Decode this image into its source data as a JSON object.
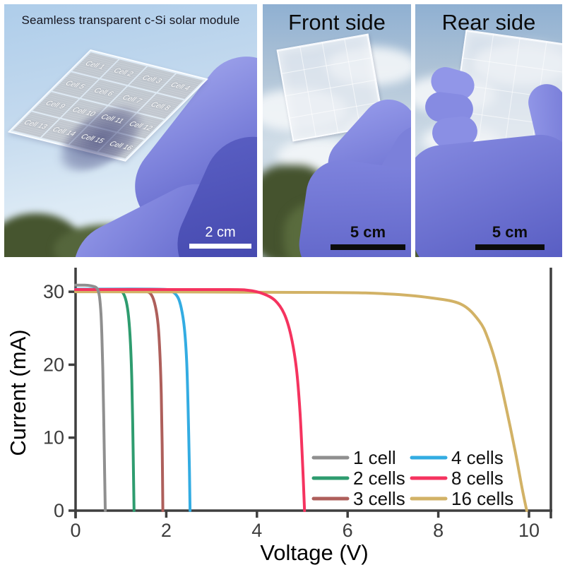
{
  "figure": {
    "panel_module": {
      "title": "Seamless transparent c-Si solar module",
      "cells": [
        "Cell 1",
        "Cell 2",
        "Cell 3",
        "Cell 4",
        "Cell 5",
        "Cell 6",
        "Cell 7",
        "Cell 8",
        "Cell 9",
        "Cell 10",
        "Cell 11",
        "Cell 12",
        "Cell 13",
        "Cell 14",
        "Cell 15",
        "Cell 16"
      ],
      "scale_bar_label": "2 cm"
    },
    "panel_front": {
      "title": "Front side",
      "scale_bar_label": "5 cm"
    },
    "panel_rear": {
      "title": "Rear side",
      "scale_bar_label": "5 cm"
    }
  },
  "colors": {
    "glove": "#7b80d8",
    "axis": "#3f3f3f",
    "tick_label": "#3d3d3d",
    "scale_bar_white": "#ffffff",
    "scale_bar_black": "#0c0c0c"
  },
  "chart_data": {
    "type": "line",
    "title": "",
    "xlabel": "Voltage (V)",
    "ylabel": "Current (mA)",
    "xlim": [
      0,
      10.55
    ],
    "ylim": [
      0,
      33.5
    ],
    "x_ticks": [
      0,
      2,
      4,
      6,
      8,
      10
    ],
    "y_ticks": [
      0,
      10,
      20,
      30
    ],
    "grid": false,
    "legend_position": "lower-right, two columns",
    "series": [
      {
        "name": "1 cell",
        "color": "#8f8f8f",
        "isc_mA": 30.9,
        "voc_V": 0.66,
        "points": [
          [
            0,
            30.9
          ],
          [
            0.2,
            30.9
          ],
          [
            0.35,
            30.8
          ],
          [
            0.45,
            30.6
          ],
          [
            0.5,
            30.1
          ],
          [
            0.53,
            29.2
          ],
          [
            0.56,
            27.0
          ],
          [
            0.58,
            24.0
          ],
          [
            0.6,
            19.5
          ],
          [
            0.62,
            13.0
          ],
          [
            0.64,
            5.5
          ],
          [
            0.655,
            0
          ]
        ]
      },
      {
        "name": "2 cells",
        "color": "#2e9c6f",
        "isc_mA": 30.3,
        "voc_V": 1.29,
        "points": [
          [
            0,
            30.3
          ],
          [
            0.7,
            30.3
          ],
          [
            0.95,
            30.2
          ],
          [
            1.05,
            29.8
          ],
          [
            1.12,
            28.6
          ],
          [
            1.17,
            26.5
          ],
          [
            1.21,
            23.0
          ],
          [
            1.24,
            18.0
          ],
          [
            1.26,
            12.0
          ],
          [
            1.28,
            4.0
          ],
          [
            1.29,
            0
          ]
        ]
      },
      {
        "name": "3 cells",
        "color": "#ae5f5b",
        "isc_mA": 30.25,
        "voc_V": 1.93,
        "points": [
          [
            0,
            30.25
          ],
          [
            1.3,
            30.25
          ],
          [
            1.55,
            30.1
          ],
          [
            1.68,
            29.5
          ],
          [
            1.76,
            28.0
          ],
          [
            1.82,
            25.5
          ],
          [
            1.86,
            21.5
          ],
          [
            1.89,
            16.0
          ],
          [
            1.91,
            9.0
          ],
          [
            1.925,
            0
          ]
        ]
      },
      {
        "name": "4 cells",
        "color": "#33ace2",
        "isc_mA": 30.35,
        "voc_V": 2.53,
        "points": [
          [
            0,
            30.35
          ],
          [
            1.8,
            30.35
          ],
          [
            2.1,
            30.1
          ],
          [
            2.25,
            29.3
          ],
          [
            2.33,
            27.8
          ],
          [
            2.4,
            25.0
          ],
          [
            2.45,
            20.5
          ],
          [
            2.48,
            14.5
          ],
          [
            2.51,
            6.0
          ],
          [
            2.525,
            0
          ]
        ]
      },
      {
        "name": "8 cells",
        "color": "#f5335f",
        "isc_mA": 30.3,
        "voc_V": 5.05,
        "points": [
          [
            0,
            30.3
          ],
          [
            3.2,
            30.3
          ],
          [
            3.8,
            30.2
          ],
          [
            4.15,
            29.7
          ],
          [
            4.4,
            28.8
          ],
          [
            4.6,
            27.0
          ],
          [
            4.75,
            24.0
          ],
          [
            4.87,
            19.5
          ],
          [
            4.95,
            13.5
          ],
          [
            5.01,
            6.0
          ],
          [
            5.05,
            0
          ]
        ]
      },
      {
        "name": "16 cells",
        "color": "#d2b266",
        "isc_mA": 30.0,
        "voc_V": 9.95,
        "points": [
          [
            0,
            30.0
          ],
          [
            5.5,
            29.9
          ],
          [
            6.9,
            29.7
          ],
          [
            7.8,
            29.2
          ],
          [
            8.5,
            28.3
          ],
          [
            8.9,
            26.0
          ],
          [
            9.1,
            23.5
          ],
          [
            9.3,
            19.5
          ],
          [
            9.5,
            14.0
          ],
          [
            9.7,
            8.0
          ],
          [
            9.85,
            3.0
          ],
          [
            9.95,
            0
          ]
        ]
      }
    ]
  }
}
